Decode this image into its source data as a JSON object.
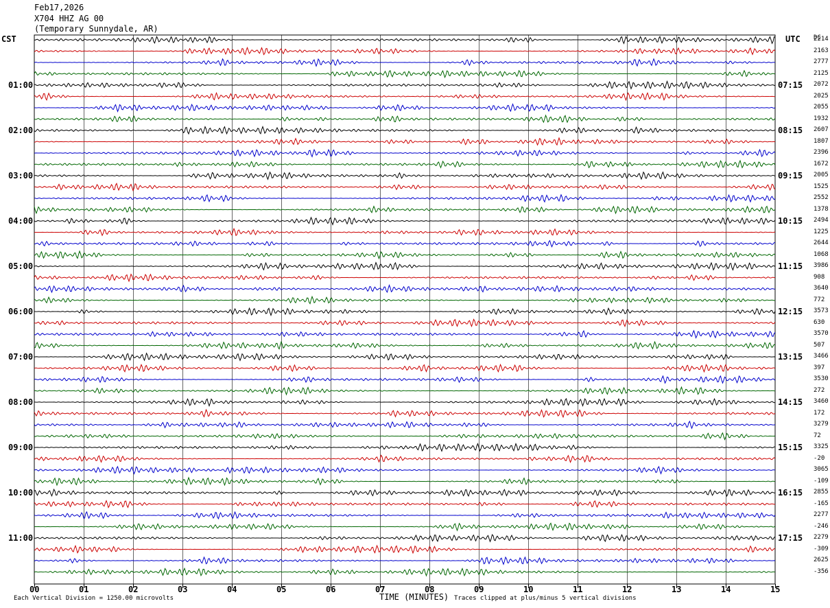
{
  "header": {
    "date": "Feb17,2026",
    "station": "X704 HHZ AG 00",
    "location": "(Temporary Sunnydale, AR)"
  },
  "left_tz": "CST",
  "right_tz": "UTC",
  "dc_label": "DC",
  "footer": {
    "left_note": "Each Vertical Division = 1250.00 microvolts",
    "axis_title": "TIME (MINUTES)",
    "right_note": "Traces clipped at plus/minus 5 vertical divisions"
  },
  "chart_data": {
    "type": "line",
    "title": "",
    "xlabel": "TIME (MINUTES)",
    "xlim": [
      0,
      15
    ],
    "x_ticks": [
      "00",
      "01",
      "02",
      "03",
      "04",
      "05",
      "06",
      "07",
      "08",
      "09",
      "10",
      "11",
      "12",
      "13",
      "14",
      "15"
    ],
    "grid": true,
    "trace_colors": [
      "#000000",
      "#cc0000",
      "#0000cc",
      "#006600"
    ],
    "left_hour_labels": [
      "01:00",
      "02:00",
      "03:00",
      "04:00",
      "05:00",
      "06:00",
      "07:00",
      "08:00",
      "09:00",
      "10:00",
      "11:00"
    ],
    "right_hour_labels": [
      "07:15",
      "08:15",
      "09:15",
      "10:15",
      "11:15",
      "12:15",
      "13:15",
      "14:15",
      "15:15",
      "16:15",
      "17:15"
    ],
    "dc_offsets": [
      "2214",
      "2163",
      "2777",
      "2125",
      "2072",
      "2025",
      "2055",
      "1932",
      "2607",
      "1807",
      "2396",
      "1672",
      "2005",
      "1525",
      "2552",
      "1378",
      "2494",
      "1225",
      "2644",
      "1068",
      "3986",
      "908",
      "3640",
      "772",
      "3573",
      "630",
      "3570",
      "507",
      "3466",
      "397",
      "3530",
      "272",
      "3460",
      "172",
      "3279",
      "72",
      "3325",
      "-20",
      "3065",
      "-109",
      "2855",
      "-165",
      "2277",
      "-246",
      "2279",
      "-309",
      "2625",
      "-356"
    ]
  }
}
